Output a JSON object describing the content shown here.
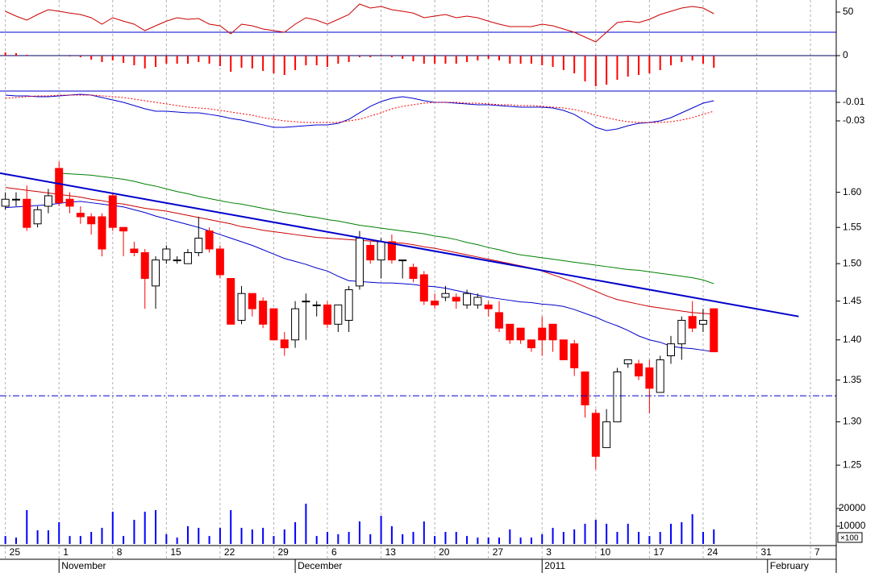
{
  "x_axis": {
    "x": [
      0,
      1,
      2,
      3,
      4,
      5,
      6,
      7,
      8,
      9,
      10,
      11,
      12,
      13,
      14,
      15,
      16,
      17,
      18,
      19,
      20,
      21,
      22,
      23,
      24,
      25,
      26,
      27,
      28,
      29,
      30,
      31,
      32,
      33,
      34,
      35,
      36,
      37,
      38,
      39,
      40,
      41,
      42,
      43,
      44,
      45,
      46,
      47,
      48,
      49,
      50,
      51,
      52,
      53,
      54,
      55,
      56,
      57,
      58,
      59,
      60,
      61,
      62,
      63,
      64,
      65,
      66
    ],
    "xlim": [
      -0.5,
      77.4
    ],
    "xticks": [
      {
        "value": 0,
        "label": "25"
      },
      {
        "value": 5,
        "label": "1"
      },
      {
        "value": 10,
        "label": "8"
      },
      {
        "value": 15,
        "label": "15"
      },
      {
        "value": 20,
        "label": "22"
      },
      {
        "value": 25,
        "label": "29"
      },
      {
        "value": 30,
        "label": "6"
      },
      {
        "value": 35,
        "label": "13"
      },
      {
        "value": 40,
        "label": "20"
      },
      {
        "value": 45,
        "label": "27"
      },
      {
        "value": 50,
        "label": "3"
      },
      {
        "value": 55,
        "label": "10"
      },
      {
        "value": 60,
        "label": "17"
      },
      {
        "value": 65,
        "label": "24"
      },
      {
        "value": 70,
        "label": "31"
      },
      {
        "value": 75,
        "label": "7"
      }
    ],
    "month_ticks": [
      {
        "value": 5,
        "label": "November"
      },
      {
        "value": 27,
        "label": "December"
      },
      {
        "value": 50,
        "label": "2011"
      },
      {
        "value": 71,
        "label": "February"
      }
    ]
  },
  "chart_data": [
    {
      "type": "line",
      "ylim": [
        18,
        62
      ],
      "yticks": [
        50
      ],
      "series": [
        {
          "color": "#cc0000",
          "values": [
            50.8,
            46,
            42,
            47.6,
            52.4,
            50.8,
            49,
            47.6,
            44.4,
            38,
            44.4,
            41,
            38,
            31.6,
            36.4,
            41,
            44.4,
            42.8,
            43.6,
            38,
            36.4,
            28.4,
            38,
            36.4,
            33.2,
            31.6,
            30,
            38,
            44.4,
            42,
            38,
            42.8,
            47.6,
            58,
            54,
            55.6,
            52.4,
            50.8,
            49,
            44.4,
            46,
            47.6,
            44.4,
            46,
            44.4,
            41,
            38,
            35.6,
            35.6,
            35.6,
            38,
            36.4,
            33.2,
            30,
            25.2,
            20.4,
            30,
            39.6,
            41,
            39.6,
            42.8,
            47.6,
            50.8,
            54,
            55.6,
            54,
            48.4
          ]
        }
      ]
    },
    {
      "type": "bar",
      "ylim": [
        -0.0215,
        0.012
      ],
      "yticks": [
        0
      ],
      "series": [
        {
          "color": "#ff0000",
          "values": [
            0.002,
            0.0015,
            0.0005,
            0,
            0,
            0,
            -0.0005,
            -0.001,
            -0.0025,
            -0.004,
            -0.003,
            -0.0045,
            -0.006,
            -0.008,
            -0.007,
            -0.005,
            -0.005,
            -0.005,
            -0.004,
            -0.005,
            -0.0065,
            -0.01,
            -0.0075,
            -0.008,
            -0.0095,
            -0.011,
            -0.012,
            -0.009,
            -0.006,
            -0.006,
            -0.007,
            -0.005,
            -0.004,
            -0.001,
            -0.001,
            -0.0005,
            -0.001,
            -0.002,
            -0.0035,
            -0.005,
            -0.005,
            -0.005,
            -0.005,
            -0.004,
            -0.003,
            -0.002,
            -0.003,
            -0.005,
            -0.005,
            -0.005,
            -0.006,
            -0.007,
            -0.009,
            -0.011,
            -0.016,
            -0.019,
            -0.018,
            -0.015,
            -0.013,
            -0.012,
            -0.011,
            -0.009,
            -0.006,
            -0.004,
            -0.003,
            -0.005,
            -0.0075
          ]
        }
      ]
    },
    {
      "type": "line",
      "ylim": [
        -0.0474,
        0.0013
      ],
      "yticks": [
        -0.01,
        -0.03
      ],
      "series": [
        {
          "color": "#0000cc",
          "values": [
            -0.0022,
            -0.003,
            -0.003,
            -0.0039,
            -0.0039,
            -0.003,
            -0.0022,
            -0.0013,
            -0.0022,
            -0.0048,
            -0.0074,
            -0.01,
            -0.0135,
            -0.017,
            -0.0196,
            -0.0196,
            -0.0204,
            -0.0213,
            -0.0213,
            -0.023,
            -0.0248,
            -0.0274,
            -0.0291,
            -0.0317,
            -0.0343,
            -0.037,
            -0.037,
            -0.0361,
            -0.0352,
            -0.0343,
            -0.0343,
            -0.0326,
            -0.0283,
            -0.0213,
            -0.0143,
            -0.0091,
            -0.0057,
            -0.0039,
            -0.0057,
            -0.0083,
            -0.01,
            -0.01,
            -0.0109,
            -0.0117,
            -0.0126,
            -0.0126,
            -0.0135,
            -0.0143,
            -0.0152,
            -0.0152,
            -0.0152,
            -0.0161,
            -0.0187,
            -0.023,
            -0.03,
            -0.037,
            -0.0404,
            -0.0387,
            -0.0352,
            -0.0326,
            -0.0317,
            -0.03,
            -0.0265,
            -0.0213,
            -0.0161,
            -0.0109,
            -0.0083
          ]
        },
        {
          "color": "#ff0000",
          "dashed": true,
          "values": [
            -0.0057,
            -0.0048,
            -0.0039,
            -0.003,
            -0.003,
            -0.0022,
            -0.0022,
            -0.0022,
            -0.0022,
            -0.003,
            -0.0039,
            -0.0048,
            -0.0065,
            -0.0083,
            -0.01,
            -0.0117,
            -0.0135,
            -0.0152,
            -0.0161,
            -0.017,
            -0.0187,
            -0.0204,
            -0.0222,
            -0.0239,
            -0.0265,
            -0.0283,
            -0.03,
            -0.0309,
            -0.0317,
            -0.0317,
            -0.0317,
            -0.0317,
            -0.03,
            -0.0283,
            -0.0248,
            -0.0213,
            -0.017,
            -0.0143,
            -0.0126,
            -0.0109,
            -0.01,
            -0.01,
            -0.01,
            -0.0109,
            -0.0109,
            -0.0117,
            -0.0126,
            -0.0126,
            -0.0135,
            -0.0135,
            -0.0143,
            -0.0152,
            -0.0161,
            -0.0178,
            -0.0204,
            -0.0239,
            -0.0265,
            -0.0291,
            -0.0309,
            -0.0317,
            -0.0317,
            -0.0317,
            -0.0309,
            -0.0291,
            -0.0265,
            -0.023,
            -0.0196
          ]
        }
      ]
    },
    {
      "type": "candlestick",
      "log_scale": true,
      "ylim": [
        1.216,
        1.676
      ],
      "yticks": [
        1.25,
        {
          "value": 1.3,
          "label": "1.30"
        },
        1.35,
        {
          "value": 1.4,
          "label": "1.40"
        },
        1.45,
        {
          "value": 1.5,
          "label": "1.50"
        },
        1.55,
        {
          "value": 1.6,
          "label": "1.60"
        }
      ],
      "up_color": "#ffffff",
      "down_color": "#ff0000",
      "open": [
        1.58,
        1.59,
        1.59,
        1.555,
        1.58,
        1.635,
        1.59,
        1.57,
        1.565,
        1.565,
        1.595,
        1.55,
        1.52,
        1.515,
        1.47,
        1.505,
        1.505,
        1.5,
        1.515,
        1.545,
        1.52,
        1.48,
        1.425,
        1.46,
        1.45,
        1.44,
        1.4,
        1.4,
        1.45,
        1.445,
        1.445,
        1.42,
        1.425,
        1.47,
        1.525,
        1.505,
        1.53,
        1.505,
        1.495,
        1.485,
        1.45,
        1.455,
        1.455,
        1.445,
        1.445,
        1.445,
        1.435,
        1.42,
        1.415,
        1.4,
        1.415,
        1.42,
        1.4,
        1.395,
        1.36,
        1.31,
        1.27,
        1.3,
        1.37,
        1.37,
        1.365,
        1.335,
        1.38,
        1.395,
        1.43,
        1.42,
        1.44
      ],
      "high": [
        1.6,
        1.6,
        1.61,
        1.58,
        1.605,
        1.645,
        1.6,
        1.58,
        1.57,
        1.57,
        1.6,
        1.55,
        1.53,
        1.52,
        1.51,
        1.525,
        1.51,
        1.52,
        1.565,
        1.55,
        1.525,
        1.48,
        1.47,
        1.46,
        1.455,
        1.44,
        1.41,
        1.45,
        1.46,
        1.45,
        1.45,
        1.445,
        1.47,
        1.545,
        1.53,
        1.535,
        1.54,
        1.505,
        1.5,
        1.49,
        1.46,
        1.47,
        1.46,
        1.465,
        1.46,
        1.45,
        1.45,
        1.42,
        1.415,
        1.4,
        1.43,
        1.42,
        1.4,
        1.4,
        1.36,
        1.315,
        1.315,
        1.365,
        1.375,
        1.375,
        1.375,
        1.38,
        1.405,
        1.43,
        1.45,
        1.44,
        1.44
      ],
      "low": [
        1.575,
        1.58,
        1.545,
        1.55,
        1.57,
        1.58,
        1.57,
        1.555,
        1.54,
        1.51,
        1.545,
        1.51,
        1.51,
        1.44,
        1.44,
        1.5,
        1.5,
        1.5,
        1.51,
        1.515,
        1.48,
        1.42,
        1.42,
        1.43,
        1.415,
        1.4,
        1.38,
        1.39,
        1.4,
        1.43,
        1.415,
        1.41,
        1.41,
        1.465,
        1.5,
        1.48,
        1.5,
        1.48,
        1.475,
        1.445,
        1.44,
        1.45,
        1.44,
        1.44,
        1.44,
        1.43,
        1.41,
        1.395,
        1.395,
        1.385,
        1.38,
        1.385,
        1.375,
        1.355,
        1.305,
        1.245,
        1.27,
        1.3,
        1.365,
        1.35,
        1.31,
        1.335,
        1.37,
        1.375,
        1.41,
        1.41,
        1.385
      ],
      "close": [
        1.59,
        1.59,
        1.55,
        1.575,
        1.595,
        1.585,
        1.58,
        1.565,
        1.555,
        1.52,
        1.55,
        1.545,
        1.515,
        1.48,
        1.505,
        1.52,
        1.505,
        1.515,
        1.535,
        1.52,
        1.485,
        1.42,
        1.46,
        1.44,
        1.42,
        1.4,
        1.39,
        1.44,
        1.45,
        1.445,
        1.42,
        1.445,
        1.465,
        1.535,
        1.505,
        1.53,
        1.505,
        1.505,
        1.48,
        1.45,
        1.445,
        1.46,
        1.45,
        1.46,
        1.455,
        1.44,
        1.415,
        1.4,
        1.4,
        1.39,
        1.4,
        1.4,
        1.375,
        1.365,
        1.32,
        1.26,
        1.3,
        1.36,
        1.375,
        1.355,
        1.34,
        1.375,
        1.395,
        1.425,
        1.415,
        1.425,
        1.385
      ],
      "series": [
        {
          "color": "#0000cc",
          "values": [
            1.578,
            1.579,
            1.58,
            1.581,
            1.582,
            1.584,
            1.586,
            1.587,
            1.585,
            1.583,
            1.581,
            1.579,
            1.575,
            1.571,
            1.566,
            1.562,
            1.558,
            1.554,
            1.55,
            1.545,
            1.54,
            1.535,
            1.53,
            1.525,
            1.519,
            1.513,
            1.507,
            1.503,
            1.499,
            1.494,
            1.49,
            1.483,
            1.477,
            1.476,
            1.475,
            1.474,
            1.474,
            1.473,
            1.472,
            1.47,
            1.469,
            1.467,
            1.464,
            1.461,
            1.458,
            1.455,
            1.453,
            1.451,
            1.449,
            1.448,
            1.446,
            1.445,
            1.443,
            1.439,
            1.434,
            1.429,
            1.423,
            1.418,
            1.412,
            1.405,
            1.4,
            1.397,
            1.392,
            1.39,
            1.389,
            1.387,
            1.385
          ]
        },
        {
          "color": "#cc0000",
          "values": [
            1.607,
            1.605,
            1.603,
            1.601,
            1.599,
            1.597,
            1.595,
            1.593,
            1.59,
            1.588,
            1.585,
            1.583,
            1.58,
            1.577,
            1.575,
            1.573,
            1.57,
            1.567,
            1.564,
            1.561,
            1.558,
            1.555,
            1.551,
            1.549,
            1.546,
            1.544,
            1.542,
            1.54,
            1.538,
            1.536,
            1.535,
            1.534,
            1.533,
            1.532,
            1.531,
            1.53,
            1.529,
            1.528,
            1.526,
            1.523,
            1.521,
            1.518,
            1.515,
            1.512,
            1.509,
            1.506,
            1.503,
            1.5,
            1.497,
            1.494,
            1.49,
            1.485,
            1.48,
            1.475,
            1.469,
            1.463,
            1.457,
            1.452,
            1.449,
            1.446,
            1.443,
            1.441,
            1.439,
            1.437,
            1.435,
            1.434,
            1.433
          ]
        },
        {
          "color": "#008000",
          "values": [
            null,
            null,
            null,
            null,
            null,
            1.628,
            1.627,
            1.626,
            1.625,
            1.623,
            1.621,
            1.619,
            1.616,
            1.612,
            1.609,
            1.605,
            1.601,
            1.598,
            1.594,
            1.591,
            1.588,
            1.585,
            1.583,
            1.58,
            1.577,
            1.574,
            1.571,
            1.569,
            1.566,
            1.564,
            1.561,
            1.559,
            1.556,
            1.553,
            1.551,
            1.549,
            1.547,
            1.545,
            1.543,
            1.541,
            1.538,
            1.536,
            1.533,
            1.529,
            1.526,
            1.522,
            1.519,
            1.515,
            1.512,
            1.51,
            1.508,
            1.506,
            1.504,
            1.502,
            1.5,
            1.498,
            1.496,
            1.494,
            1.492,
            1.491,
            1.489,
            1.487,
            1.485,
            1.483,
            1.481,
            1.478,
            1.473
          ]
        }
      ],
      "trendline": {
        "color": "#0000cc",
        "x": [
          -0.5,
          73.9
        ],
        "values": [
          1.628,
          1.43
        ]
      },
      "hline": {
        "color": "#0000cc",
        "value": 1.331
      }
    },
    {
      "type": "bar",
      "ylim": [
        0,
        25000
      ],
      "yticks": [
        10000,
        20000
      ],
      "unit_label": "×100",
      "series": [
        {
          "color": "#0000ff",
          "values": [
            4500,
            3600,
            19100,
            7700,
            7700,
            12300,
            4500,
            4500,
            6800,
            9100,
            18200,
            4500,
            13600,
            18200,
            19100,
            5500,
            3600,
            10000,
            9100,
            4500,
            9100,
            19100,
            9100,
            8200,
            9100,
            4500,
            8200,
            12300,
            22700,
            4500,
            6800,
            5500,
            6800,
            12700,
            5500,
            15900,
            10000,
            5500,
            6800,
            12700,
            4500,
            6800,
            6800,
            4500,
            3600,
            3600,
            3600,
            8200,
            3600,
            3600,
            5500,
            9100,
            6800,
            8200,
            11400,
            13600,
            11400,
            6800,
            11400,
            6800,
            4500,
            6800,
            11400,
            12300,
            16800,
            6800,
            8200
          ]
        }
      ]
    }
  ]
}
